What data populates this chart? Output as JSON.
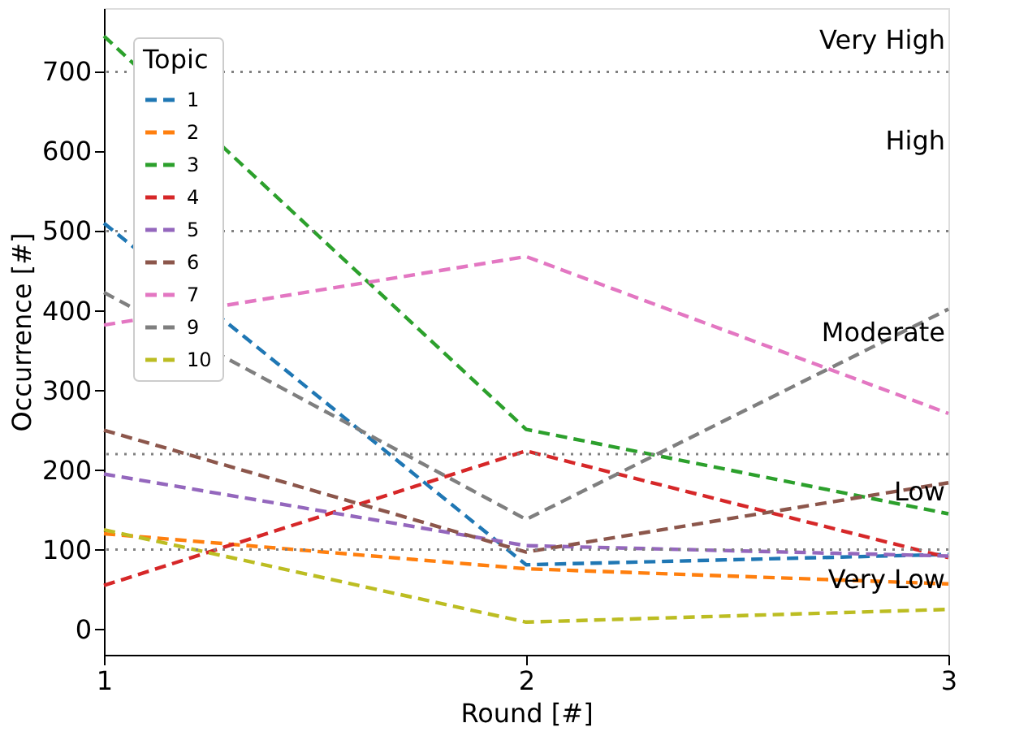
{
  "chart_data": {
    "type": "line",
    "xlabel": "Round [#]",
    "ylabel": "Occurrence [#]",
    "legend_title": "Topic",
    "x": [
      1,
      2,
      3
    ],
    "series": [
      {
        "name": "1",
        "color": "#1f77b4",
        "values": [
          510,
          81,
          94
        ]
      },
      {
        "name": "2",
        "color": "#ff7f0e",
        "values": [
          120,
          76,
          57
        ]
      },
      {
        "name": "3",
        "color": "#2ca02c",
        "values": [
          745,
          251,
          145
        ]
      },
      {
        "name": "4",
        "color": "#d62728",
        "values": [
          55,
          224,
          90
        ]
      },
      {
        "name": "5",
        "color": "#9467bd",
        "values": [
          195,
          105,
          92
        ]
      },
      {
        "name": "6",
        "color": "#8c564b",
        "values": [
          250,
          97,
          184
        ]
      },
      {
        "name": "7",
        "color": "#e377c2",
        "values": [
          382,
          468,
          271
        ]
      },
      {
        "name": "9",
        "color": "#7f7f7f",
        "values": [
          423,
          138,
          402
        ]
      },
      {
        "name": "10",
        "color": "#bcbd22",
        "values": [
          125,
          9,
          25
        ]
      }
    ],
    "xlim": [
      1,
      3
    ],
    "xticks": [
      {
        "value": 1,
        "label": "1"
      },
      {
        "value": 2,
        "label": "2"
      },
      {
        "value": 3,
        "label": "3"
      }
    ],
    "ylim": [
      -32,
      780
    ],
    "yticks": [
      0,
      100,
      200,
      300,
      400,
      500,
      600,
      700
    ],
    "ref_lines": [
      {
        "axis": "y",
        "value": 700,
        "color": "#808080",
        "line_style": "dotted"
      },
      {
        "axis": "y",
        "value": 500,
        "color": "#808080",
        "line_style": "dotted"
      },
      {
        "axis": "y",
        "value": 220,
        "color": "#808080",
        "line_style": "dotted"
      },
      {
        "axis": "y",
        "value": 100,
        "color": "#808080",
        "line_style": "dotted"
      }
    ],
    "annotations": [
      "Very High",
      "High",
      "Moderate",
      "Low",
      "Very Low"
    ],
    "legend": "top left",
    "grid": false,
    "line_style": "dashed",
    "marker": "none"
  }
}
